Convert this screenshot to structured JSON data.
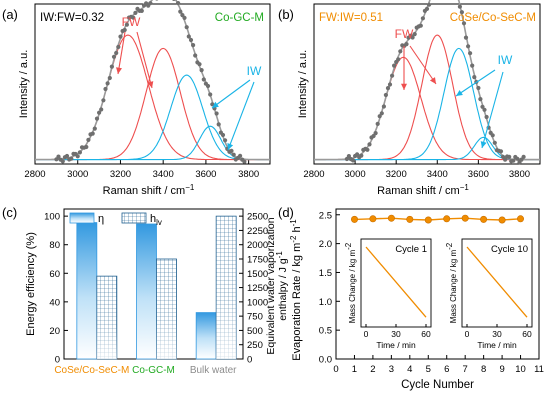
{
  "figure": {
    "panel_labels": [
      "(a)",
      "(b)",
      "(c)",
      "(d)"
    ]
  },
  "colors": {
    "fw": "#ee4f4f",
    "iw": "#1ab4e6",
    "envelope": "#9a9a9a",
    "data_dots": "#6f6f6f",
    "green_label": "#22aa22",
    "orange": "#f08c00",
    "bar_blue": "#3399e0",
    "bulk_text": "#8c8c8c"
  },
  "chart_data": [
    {
      "panel": "(a)",
      "type": "line",
      "annotation": "IW:FW=0.32",
      "sample_label": "Co-GC-M",
      "fw_label": "FW",
      "iw_label": "IW",
      "xlabel": "Raman shift / cm",
      "xlabel_sup": "−1",
      "ylabel": "Intensity / a.u.",
      "xlim": [
        2800,
        3900
      ],
      "xticks": [
        2800,
        3000,
        3200,
        3400,
        3600,
        3800
      ],
      "baseline": 0.02,
      "series": [
        {
          "group": "FW",
          "components": [
            {
              "center": 3235,
              "height": 0.56,
              "width": 95
            },
            {
              "center": 3400,
              "height": 0.5,
              "width": 80
            }
          ]
        },
        {
          "group": "IW",
          "components": [
            {
              "center": 3510,
              "height": 0.38,
              "width": 75
            },
            {
              "center": 3620,
              "height": 0.15,
              "width": 50
            }
          ]
        }
      ],
      "data_dots": {
        "x_start": 2900,
        "x_end": 3780,
        "step": 10
      }
    },
    {
      "panel": "(b)",
      "type": "line",
      "annotation": "FW:IW=0.51",
      "sample_label": "CoSe/Co-SeC-M",
      "fw_label": "FW",
      "iw_label": "IW",
      "xlabel": "Raman shift / cm",
      "xlabel_sup": "−1",
      "ylabel": "Intensity / a.u.",
      "xlim": [
        2800,
        3900
      ],
      "xticks": [
        2800,
        3000,
        3200,
        3400,
        3600,
        3800
      ],
      "baseline": 0.02,
      "series": [
        {
          "group": "FW",
          "components": [
            {
              "center": 3235,
              "height": 0.46,
              "width": 85
            },
            {
              "center": 3400,
              "height": 0.56,
              "width": 75
            }
          ]
        },
        {
          "group": "IW",
          "components": [
            {
              "center": 3505,
              "height": 0.5,
              "width": 72
            },
            {
              "center": 3625,
              "height": 0.1,
              "width": 45
            }
          ]
        }
      ],
      "data_dots": {
        "x_start": 2960,
        "x_end": 3820,
        "step": 10
      }
    },
    {
      "panel": "(c)",
      "type": "bar",
      "categories": [
        "CoSe/Co-SeC-M",
        "Co-GC-M",
        "Bulk water"
      ],
      "category_colors": [
        "#f08c00",
        "#22aa22",
        "#8c8c8c"
      ],
      "series": [
        {
          "name": "η",
          "axis": "left",
          "values": [
            95.5,
            94.5,
            32.5
          ]
        },
        {
          "name": "h",
          "name_sub": "lv",
          "axis": "right",
          "values": [
            1450,
            1750,
            2500
          ]
        }
      ],
      "ylabel_left": "Energy efficiency (%)",
      "ylabel_right_line1": "Equivalent water vaporization",
      "ylabel_right_line2": "enthalpy / J g",
      "ylabel_right_sup": "-1",
      "ylim_left": [
        0,
        105
      ],
      "ylim_right": [
        0,
        2625
      ],
      "yticks_left": [
        0,
        20,
        40,
        60,
        80,
        100
      ],
      "yticks_right": [
        0,
        250,
        500,
        750,
        1000,
        1250,
        1500,
        1750,
        2000,
        2250,
        2500
      ],
      "legend": "top-left"
    },
    {
      "panel": "(d)",
      "type": "line",
      "x": [
        1,
        2,
        3,
        4,
        5,
        6,
        7,
        8,
        9,
        10
      ],
      "values": [
        2.42,
        2.43,
        2.44,
        2.42,
        2.41,
        2.43,
        2.44,
        2.42,
        2.41,
        2.43
      ],
      "xlabel": "Cycle Number",
      "ylabel": "Evaporation Rate / kg m",
      "ylabel_sup1": "-2",
      "ylabel_mid": " h",
      "ylabel_sup2": "-1",
      "xlim": [
        0,
        11
      ],
      "ylim": [
        0,
        2.6
      ],
      "xticks": [
        0,
        1,
        2,
        3,
        4,
        5,
        6,
        7,
        8,
        9,
        10,
        11
      ],
      "yticks": [
        0.0,
        0.5,
        1.0,
        1.5,
        2.0,
        2.5
      ],
      "insets": [
        {
          "label": "Cycle 1",
          "xlabel": "Time / min",
          "ylabel": "Mass Change / kg m",
          "ylabel_sup": "-2",
          "xlim": [
            -5,
            65
          ],
          "xticks": [
            0,
            30,
            60
          ],
          "line": {
            "x": [
              0,
              60
            ],
            "y": [
              0,
              -2.4
            ]
          }
        },
        {
          "label": "Cycle 10",
          "xlabel": "Time / min",
          "ylabel": "Mass Change / kg m",
          "ylabel_sup": "-2",
          "xlim": [
            -5,
            65
          ],
          "xticks": [
            0,
            30,
            60
          ],
          "line": {
            "x": [
              0,
              60
            ],
            "y": [
              0,
              -2.4
            ]
          }
        }
      ]
    }
  ]
}
